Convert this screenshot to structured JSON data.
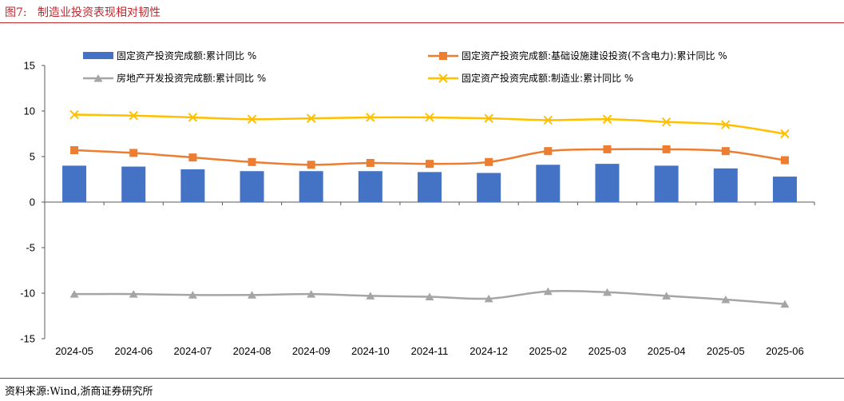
{
  "figure": {
    "title": "图7:   制造业投资表现相对韧性",
    "source": "资料来源:Wind,浙商证券研究所"
  },
  "colors": {
    "bar": "#4472c4",
    "infra": "#ed7d31",
    "realestate": "#a5a5a5",
    "manufacturing": "#ffc000",
    "accent": "#c0272d"
  },
  "chart_data": {
    "type": "bar",
    "categories": [
      "2024-05",
      "2024-06",
      "2024-07",
      "2024-08",
      "2024-09",
      "2024-10",
      "2024-11",
      "2024-12",
      "2025-02",
      "2025-03",
      "2025-04",
      "2025-05",
      "2025-06"
    ],
    "ylim": [
      -15,
      15
    ],
    "yticks": [
      15,
      10,
      5,
      0,
      -5,
      -10,
      -15
    ],
    "grid": false,
    "legend_position": "top",
    "series": [
      {
        "name": "固定资产投资完成额:累计同比 %",
        "type": "bar",
        "marker": "none",
        "values": [
          4.0,
          3.9,
          3.6,
          3.4,
          3.4,
          3.4,
          3.3,
          3.2,
          4.1,
          4.2,
          4.0,
          3.7,
          2.8
        ]
      },
      {
        "name": "固定资产投资完成额:基础设施建设投资(不含电力):累计同比 %",
        "type": "line",
        "marker": "square",
        "values": [
          5.7,
          5.4,
          4.9,
          4.4,
          4.1,
          4.3,
          4.2,
          4.4,
          5.6,
          5.8,
          5.8,
          5.6,
          4.6
        ]
      },
      {
        "name": "房地产开发投资完成额:累计同比 %",
        "type": "line",
        "marker": "triangle",
        "values": [
          -10.1,
          -10.1,
          -10.2,
          -10.2,
          -10.1,
          -10.3,
          -10.4,
          -10.6,
          -9.8,
          -9.9,
          -10.3,
          -10.7,
          -11.2
        ]
      },
      {
        "name": "固定资产投资完成额:制造业:累计同比 %",
        "type": "line",
        "marker": "x",
        "values": [
          9.6,
          9.5,
          9.3,
          9.1,
          9.2,
          9.3,
          9.3,
          9.2,
          9.0,
          9.1,
          8.8,
          8.5,
          7.5
        ]
      }
    ]
  }
}
